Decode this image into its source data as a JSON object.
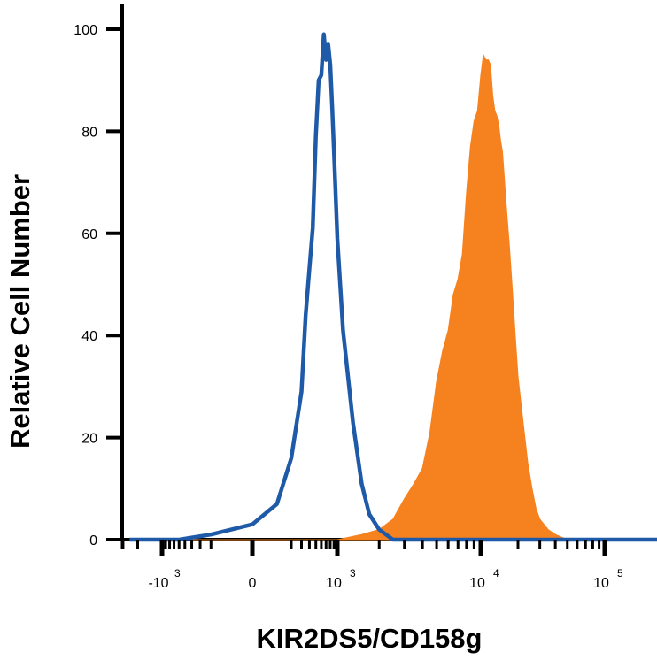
{
  "chart_data": {
    "type": "area",
    "ylabel": "Relative Cell Number",
    "xlabel": "KIR2DS5/CD158g",
    "x_scale": "biexponential",
    "ylim": [
      0,
      100
    ],
    "y_ticks": [
      0,
      20,
      40,
      60,
      80,
      100
    ],
    "x_ticks": [
      {
        "value": -1000,
        "base": "-10",
        "exp": "3"
      },
      {
        "value": 0,
        "base": "0",
        "exp": ""
      },
      {
        "value": 1000,
        "base": "10",
        "exp": "3"
      },
      {
        "value": 10000,
        "base": "10",
        "exp": "4"
      },
      {
        "value": 100000,
        "base": "10",
        "exp": "5"
      }
    ],
    "colors": {
      "isotype": "#1f5aa8",
      "stained": "#f5821f"
    },
    "series": [
      {
        "style": "outline",
        "color": "#1f5aa8",
        "x": [
          -2500,
          -600,
          -200,
          0,
          100,
          200,
          300,
          350,
          400,
          450,
          500,
          550,
          600,
          650,
          700,
          750,
          800,
          850,
          900,
          1000,
          1100,
          1300,
          1500,
          1700,
          2000,
          2500,
          4000,
          100000,
          300000
        ],
        "y": [
          0,
          0,
          1,
          3,
          7,
          16,
          29,
          44,
          53,
          61,
          79,
          90,
          91,
          99,
          94,
          97,
          93,
          85,
          76,
          59,
          41,
          23,
          11,
          5,
          2,
          0,
          0,
          0,
          0
        ]
      },
      {
        "style": "filled",
        "color": "#f5821f",
        "x": [
          -2500,
          1000,
          1500,
          2000,
          2500,
          3000,
          3500,
          4000,
          4500,
          5000,
          5500,
          6000,
          6500,
          7000,
          7500,
          8000,
          8500,
          9000,
          9500,
          10000,
          10500,
          11000,
          11500,
          12000,
          12500,
          13000,
          13500,
          14000,
          14500,
          15000,
          16000,
          17000,
          18000,
          19000,
          20000,
          22000,
          24000,
          26000,
          28000,
          30000,
          35000,
          40000,
          50000,
          300000
        ],
        "y": [
          0,
          0,
          1,
          2,
          4,
          8,
          11,
          14,
          21,
          31,
          37,
          41,
          48,
          51,
          56,
          68,
          77,
          82,
          84,
          91,
          95,
          94,
          94,
          93,
          87,
          84,
          83,
          81,
          78,
          76,
          66,
          58,
          49,
          40,
          32,
          23,
          15,
          10,
          6,
          4,
          2,
          1,
          0,
          0
        ]
      }
    ]
  }
}
